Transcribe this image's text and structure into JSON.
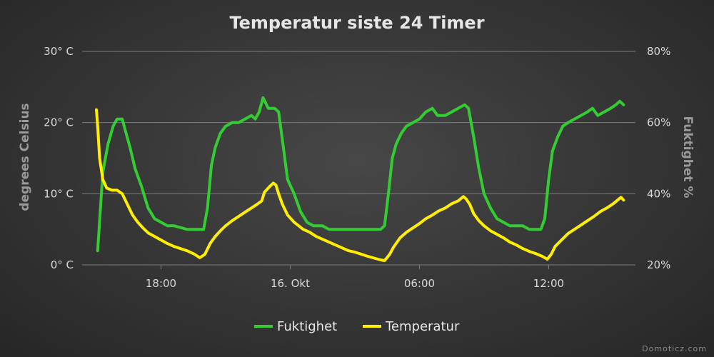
{
  "chart_data": {
    "type": "line",
    "title": "Temperatur siste 24 Timer",
    "ylabel_left": "degrees Celsius",
    "ylabel_right": "Fuktighet %",
    "y_left": {
      "min": 0,
      "max": 30,
      "ticks": [
        "0° C",
        "10° C",
        "20° C",
        "30° C"
      ]
    },
    "y_right": {
      "min": 20,
      "max": 80,
      "ticks": [
        "20%",
        "40%",
        "60%",
        "80%"
      ]
    },
    "x": {
      "min": 0,
      "max": 41,
      "tick_positions": [
        5,
        15,
        25,
        35
      ],
      "ticks": [
        "18:00",
        "16. Okt",
        "06:00",
        "12:00"
      ]
    },
    "grid": "horizontal",
    "legend": "bottom-center",
    "series": [
      {
        "name": "Fuktighet",
        "axis": "right",
        "color": "#33cc33",
        "points": [
          [
            0.1,
            24
          ],
          [
            0.5,
            46
          ],
          [
            0.9,
            54
          ],
          [
            1.3,
            59
          ],
          [
            1.6,
            61
          ],
          [
            2.0,
            61
          ],
          [
            2.3,
            57
          ],
          [
            2.6,
            53
          ],
          [
            3.0,
            47
          ],
          [
            3.5,
            42
          ],
          [
            4.0,
            36
          ],
          [
            4.5,
            33
          ],
          [
            5.0,
            32
          ],
          [
            5.5,
            31
          ],
          [
            6.0,
            31
          ],
          [
            7.0,
            30
          ],
          [
            8.0,
            30
          ],
          [
            8.3,
            30
          ],
          [
            8.6,
            36
          ],
          [
            8.9,
            48
          ],
          [
            9.2,
            53
          ],
          [
            9.6,
            57
          ],
          [
            10.0,
            59
          ],
          [
            10.5,
            60
          ],
          [
            11.0,
            60
          ],
          [
            11.5,
            61
          ],
          [
            12.0,
            62
          ],
          [
            12.3,
            61
          ],
          [
            12.6,
            63
          ],
          [
            12.9,
            67
          ],
          [
            13.3,
            64
          ],
          [
            13.8,
            64
          ],
          [
            14.1,
            63
          ],
          [
            14.4,
            55
          ],
          [
            14.8,
            44
          ],
          [
            15.3,
            40
          ],
          [
            15.8,
            35
          ],
          [
            16.3,
            32
          ],
          [
            16.8,
            31
          ],
          [
            17.5,
            31
          ],
          [
            18.0,
            30
          ],
          [
            18.5,
            30
          ],
          [
            19.5,
            30
          ],
          [
            21.0,
            30
          ],
          [
            22.0,
            30
          ],
          [
            22.3,
            31
          ],
          [
            22.6,
            40
          ],
          [
            22.9,
            50
          ],
          [
            23.2,
            54
          ],
          [
            23.6,
            57
          ],
          [
            24.0,
            59
          ],
          [
            24.5,
            60
          ],
          [
            25.0,
            61
          ],
          [
            25.5,
            63
          ],
          [
            26.0,
            64
          ],
          [
            26.4,
            62
          ],
          [
            27.0,
            62
          ],
          [
            27.5,
            63
          ],
          [
            28.0,
            64
          ],
          [
            28.5,
            65
          ],
          [
            28.8,
            64
          ],
          [
            29.2,
            56
          ],
          [
            29.6,
            47
          ],
          [
            30.0,
            40
          ],
          [
            30.5,
            36
          ],
          [
            31.0,
            33
          ],
          [
            31.5,
            32
          ],
          [
            32.0,
            31
          ],
          [
            33.0,
            31
          ],
          [
            33.5,
            30
          ],
          [
            34.0,
            30
          ],
          [
            34.4,
            30
          ],
          [
            34.7,
            33
          ],
          [
            35.0,
            44
          ],
          [
            35.3,
            52
          ],
          [
            35.7,
            56
          ],
          [
            36.1,
            59
          ],
          [
            36.5,
            60
          ],
          [
            37.0,
            61
          ],
          [
            37.5,
            62
          ],
          [
            38.0,
            63
          ],
          [
            38.4,
            64
          ],
          [
            38.8,
            62
          ],
          [
            39.3,
            63
          ],
          [
            39.8,
            64
          ],
          [
            40.2,
            65
          ],
          [
            40.5,
            66
          ],
          [
            40.8,
            65
          ]
        ]
      },
      {
        "name": "Temperatur",
        "axis": "left",
        "color": "#ffee00",
        "points": [
          [
            0.0,
            21.8
          ],
          [
            0.1,
            19.5
          ],
          [
            0.25,
            15
          ],
          [
            0.5,
            12
          ],
          [
            0.8,
            10.8
          ],
          [
            1.2,
            10.5
          ],
          [
            1.6,
            10.5
          ],
          [
            2.0,
            10.0
          ],
          [
            2.4,
            8.5
          ],
          [
            2.8,
            7.0
          ],
          [
            3.2,
            6.0
          ],
          [
            3.6,
            5.2
          ],
          [
            4.0,
            4.5
          ],
          [
            4.5,
            4.0
          ],
          [
            5.0,
            3.5
          ],
          [
            5.5,
            3.0
          ],
          [
            6.0,
            2.6
          ],
          [
            7.0,
            2.0
          ],
          [
            7.6,
            1.5
          ],
          [
            8.0,
            1.0
          ],
          [
            8.4,
            1.5
          ],
          [
            8.8,
            3.0
          ],
          [
            9.2,
            4.0
          ],
          [
            9.6,
            4.8
          ],
          [
            10.0,
            5.5
          ],
          [
            10.5,
            6.2
          ],
          [
            11.0,
            6.8
          ],
          [
            11.5,
            7.4
          ],
          [
            12.0,
            8.0
          ],
          [
            12.5,
            8.6
          ],
          [
            12.8,
            9.0
          ],
          [
            13.0,
            10.2
          ],
          [
            13.4,
            11.0
          ],
          [
            13.7,
            11.5
          ],
          [
            13.9,
            11.2
          ],
          [
            14.1,
            10.0
          ],
          [
            14.4,
            8.5
          ],
          [
            14.8,
            7.0
          ],
          [
            15.3,
            6.0
          ],
          [
            16.0,
            5.0
          ],
          [
            16.5,
            4.6
          ],
          [
            17.0,
            4.0
          ],
          [
            17.5,
            3.6
          ],
          [
            18.0,
            3.2
          ],
          [
            18.5,
            2.8
          ],
          [
            19.0,
            2.4
          ],
          [
            19.5,
            2.0
          ],
          [
            20.0,
            1.8
          ],
          [
            21.0,
            1.2
          ],
          [
            22.0,
            0.7
          ],
          [
            22.3,
            0.6
          ],
          [
            22.7,
            1.5
          ],
          [
            23.0,
            2.5
          ],
          [
            23.5,
            3.8
          ],
          [
            24.0,
            4.6
          ],
          [
            24.5,
            5.2
          ],
          [
            25.0,
            5.8
          ],
          [
            25.5,
            6.5
          ],
          [
            26.0,
            7.0
          ],
          [
            26.5,
            7.6
          ],
          [
            27.0,
            8.0
          ],
          [
            27.5,
            8.6
          ],
          [
            28.0,
            9.0
          ],
          [
            28.4,
            9.6
          ],
          [
            28.6,
            9.3
          ],
          [
            28.9,
            8.5
          ],
          [
            29.2,
            7.2
          ],
          [
            29.6,
            6.2
          ],
          [
            30.0,
            5.5
          ],
          [
            30.5,
            4.8
          ],
          [
            31.0,
            4.3
          ],
          [
            31.5,
            3.8
          ],
          [
            32.0,
            3.2
          ],
          [
            32.5,
            2.8
          ],
          [
            33.0,
            2.3
          ],
          [
            33.5,
            1.9
          ],
          [
            34.0,
            1.6
          ],
          [
            34.5,
            1.2
          ],
          [
            34.9,
            0.8
          ],
          [
            35.2,
            1.5
          ],
          [
            35.5,
            2.6
          ],
          [
            36.0,
            3.5
          ],
          [
            36.5,
            4.4
          ],
          [
            37.0,
            5.0
          ],
          [
            37.5,
            5.6
          ],
          [
            38.0,
            6.2
          ],
          [
            38.5,
            6.8
          ],
          [
            39.0,
            7.5
          ],
          [
            39.5,
            8.0
          ],
          [
            40.0,
            8.6
          ],
          [
            40.4,
            9.2
          ],
          [
            40.6,
            9.5
          ],
          [
            40.8,
            9.1
          ]
        ]
      }
    ],
    "credit": "Domoticz.com"
  }
}
